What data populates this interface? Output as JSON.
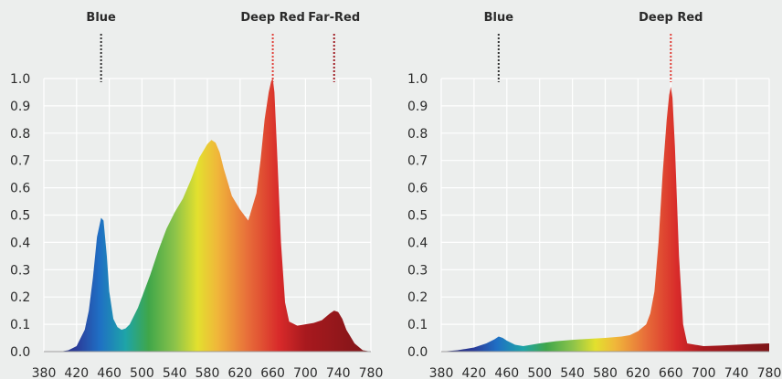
{
  "chart_data": [
    {
      "type": "area",
      "title": "",
      "xlabel": "",
      "ylabel": "",
      "xlim": [
        380,
        780
      ],
      "ylim": [
        0,
        1.0
      ],
      "grid": true,
      "x_ticks": [
        380,
        420,
        460,
        500,
        540,
        580,
        620,
        660,
        700,
        740,
        780
      ],
      "y_ticks": [
        0.0,
        0.1,
        0.2,
        0.3,
        0.4,
        0.5,
        0.6,
        0.7,
        0.8,
        0.9,
        1.0
      ],
      "x_tick_labels": [
        "380",
        "420",
        "460",
        "500",
        "540",
        "580",
        "620",
        "660",
        "700",
        "740",
        "780"
      ],
      "y_tick_labels": [
        "0.0",
        "0.1",
        "0.2",
        "0.3",
        "0.4",
        "0.5",
        "0.6",
        "0.7",
        "0.8",
        "0.9",
        "1.0"
      ],
      "annotations": [
        {
          "label": "Blue",
          "x": 450,
          "line_color": "#333333"
        },
        {
          "label": "Deep Red",
          "x": 660,
          "line_color": "#e0413a"
        },
        {
          "label": "Far-Red",
          "x": 735,
          "line_color": "#a01d24"
        }
      ],
      "series": [
        {
          "x": [
            380,
            400,
            410,
            420,
            430,
            435,
            440,
            445,
            450,
            453,
            457,
            460,
            465,
            470,
            475,
            480,
            485,
            490,
            495,
            500,
            510,
            520,
            530,
            540,
            550,
            560,
            570,
            580,
            585,
            590,
            595,
            600,
            610,
            620,
            630,
            640,
            645,
            650,
            655,
            658,
            660,
            662,
            665,
            670,
            675,
            680,
            690,
            700,
            710,
            720,
            730,
            735,
            740,
            745,
            750,
            760,
            770,
            780
          ],
          "values": [
            0.0,
            0.0,
            0.005,
            0.02,
            0.08,
            0.15,
            0.27,
            0.42,
            0.49,
            0.48,
            0.35,
            0.22,
            0.12,
            0.09,
            0.08,
            0.085,
            0.1,
            0.13,
            0.16,
            0.2,
            0.28,
            0.37,
            0.45,
            0.51,
            0.56,
            0.63,
            0.71,
            0.76,
            0.775,
            0.765,
            0.73,
            0.67,
            0.57,
            0.52,
            0.48,
            0.58,
            0.7,
            0.85,
            0.95,
            0.99,
            1.0,
            0.95,
            0.75,
            0.4,
            0.18,
            0.11,
            0.095,
            0.1,
            0.105,
            0.115,
            0.14,
            0.15,
            0.145,
            0.12,
            0.08,
            0.03,
            0.005,
            0.0
          ]
        }
      ]
    },
    {
      "type": "area",
      "title": "",
      "xlabel": "",
      "ylabel": "",
      "xlim": [
        380,
        780
      ],
      "ylim": [
        0,
        1.0
      ],
      "grid": true,
      "x_ticks": [
        380,
        420,
        460,
        500,
        540,
        580,
        620,
        660,
        700,
        740,
        780
      ],
      "y_ticks": [
        0.0,
        0.1,
        0.2,
        0.3,
        0.4,
        0.5,
        0.6,
        0.7,
        0.8,
        0.9,
        1.0
      ],
      "x_tick_labels": [
        "380",
        "420",
        "460",
        "500",
        "540",
        "580",
        "620",
        "660",
        "700",
        "740",
        "780"
      ],
      "y_tick_labels": [
        "0.0",
        "0.1",
        "0.2",
        "0.3",
        "0.4",
        "0.5",
        "0.6",
        "0.7",
        "0.8",
        "0.9",
        "1.0"
      ],
      "annotations": [
        {
          "label": "Blue",
          "x": 450,
          "line_color": "#333333"
        },
        {
          "label": "Deep Red",
          "x": 660,
          "line_color": "#e0413a"
        }
      ],
      "series": [
        {
          "x": [
            380,
            400,
            420,
            435,
            445,
            450,
            455,
            460,
            470,
            480,
            490,
            500,
            520,
            540,
            560,
            580,
            600,
            610,
            620,
            630,
            635,
            640,
            645,
            650,
            655,
            658,
            660,
            662,
            665,
            670,
            675,
            680,
            700,
            720,
            740,
            760,
            780
          ],
          "values": [
            0.0,
            0.005,
            0.015,
            0.03,
            0.045,
            0.055,
            0.05,
            0.04,
            0.025,
            0.02,
            0.025,
            0.03,
            0.038,
            0.043,
            0.047,
            0.05,
            0.055,
            0.06,
            0.075,
            0.1,
            0.14,
            0.22,
            0.4,
            0.65,
            0.85,
            0.94,
            0.97,
            0.93,
            0.75,
            0.35,
            0.1,
            0.03,
            0.02,
            0.022,
            0.025,
            0.028,
            0.03
          ]
        }
      ]
    }
  ]
}
